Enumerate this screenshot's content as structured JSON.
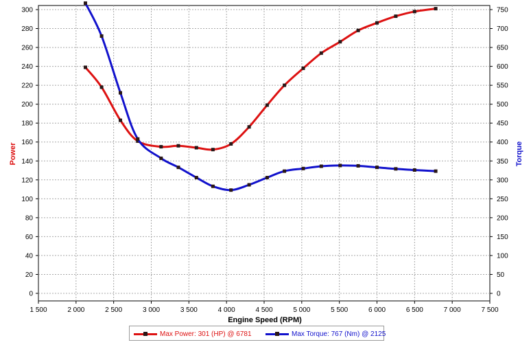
{
  "chart_data": {
    "type": "line",
    "xlabel": "Engine Speed (RPM)",
    "ylabel_left": "Power",
    "ylabel_right": "Torque",
    "xlim": [
      1500,
      7500
    ],
    "ylim_left": [
      0,
      300
    ],
    "ylim_right": [
      0,
      750
    ],
    "x_ticks": [
      1500,
      2000,
      2500,
      3000,
      3500,
      4000,
      4500,
      5000,
      5500,
      6000,
      6500,
      7000,
      7500
    ],
    "x_tick_labels": [
      "1 500",
      "2 000",
      "2 500",
      "3 000",
      "3 500",
      "4 000",
      "4 500",
      "5 000",
      "5 500",
      "6 000",
      "6 500",
      "7 000",
      "7 500"
    ],
    "y_left_ticks": [
      0,
      20,
      40,
      60,
      80,
      100,
      120,
      140,
      160,
      180,
      200,
      220,
      240,
      260,
      280,
      300
    ],
    "y_right_ticks": [
      0,
      50,
      100,
      150,
      200,
      250,
      300,
      350,
      400,
      450,
      500,
      550,
      600,
      650,
      700,
      750
    ],
    "grid": true,
    "legend_position": "bottom",
    "series": [
      {
        "name": "Max Power: 301 (HP) @ 6781",
        "axis": "left",
        "color": "#dd1111",
        "x": [
          2125,
          2340,
          2590,
          2820,
          3130,
          3360,
          3600,
          3820,
          4060,
          4300,
          4540,
          4770,
          5020,
          5260,
          5510,
          5750,
          6000,
          6250,
          6500,
          6781
        ],
        "values": [
          239,
          218,
          183,
          161,
          155,
          156,
          154,
          152,
          158,
          176,
          199,
          220,
          238,
          254,
          266,
          278,
          286,
          293,
          298,
          301
        ]
      },
      {
        "name": "Max Torque: 767 (Nm) @ 2125",
        "axis": "right",
        "color": "#1111cc",
        "x": [
          2125,
          2340,
          2590,
          2820,
          3130,
          3360,
          3600,
          3820,
          4060,
          4300,
          4540,
          4770,
          5020,
          5260,
          5510,
          5750,
          6000,
          6250,
          6500,
          6781
        ],
        "values": [
          767,
          680,
          530,
          408,
          357,
          333,
          306,
          283,
          273,
          287,
          306,
          323,
          330,
          336,
          338,
          337,
          333,
          329,
          326,
          323
        ]
      }
    ]
  }
}
